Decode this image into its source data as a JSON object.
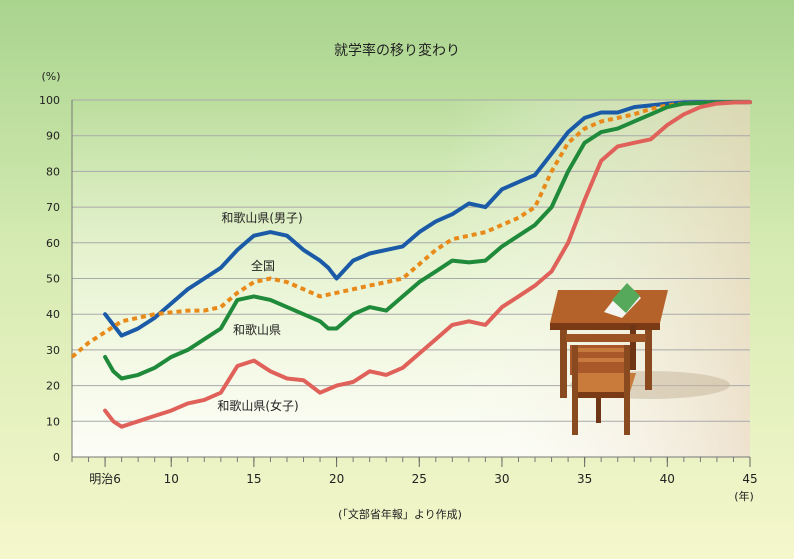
{
  "colors": {
    "background_top": "#a9d48e",
    "background_bottom": "#f5f7cc",
    "male": "#1a5aa6",
    "national": "#e88a1a",
    "total": "#1f8a3a",
    "female": "#e0605a"
  },
  "chart_data": {
    "type": "line",
    "title": "就学率の移り変わり",
    "y_unit": "(%)",
    "x_unit": "(年)",
    "source": "(「文部省年報」より作成)",
    "ylim": [
      0,
      100
    ],
    "xlim": [
      4,
      45
    ],
    "y_ticks": [
      "0",
      "10",
      "20",
      "30",
      "40",
      "50",
      "60",
      "70",
      "80",
      "90",
      "100"
    ],
    "x_ticks": [
      {
        "x": 6,
        "label": "明治6"
      },
      {
        "x": 10,
        "label": "10"
      },
      {
        "x": 15,
        "label": "15"
      },
      {
        "x": 20,
        "label": "20"
      },
      {
        "x": 25,
        "label": "25"
      },
      {
        "x": 30,
        "label": "30"
      },
      {
        "x": 35,
        "label": "35"
      },
      {
        "x": 40,
        "label": "40"
      },
      {
        "x": 45,
        "label": "45"
      }
    ],
    "grid": true,
    "series": [
      {
        "name": "和歌山県(男子)",
        "color": "#1a5aa6",
        "dashed": false,
        "x": [
          6,
          7,
          8,
          9,
          10,
          11,
          12,
          13,
          14,
          14.5,
          15,
          16,
          17,
          18,
          19,
          19.5,
          20,
          21,
          22,
          23,
          24,
          25,
          26,
          27,
          28,
          29,
          30,
          31,
          32,
          33,
          34,
          35,
          36,
          37,
          38,
          39,
          40,
          41,
          42,
          43,
          44,
          45
        ],
        "y": [
          40,
          34,
          36,
          39,
          43,
          47,
          50,
          53,
          58,
          60,
          62,
          63,
          62,
          58,
          55,
          53,
          50,
          55,
          57,
          58,
          59,
          63,
          66,
          68,
          71,
          70,
          75,
          77,
          79,
          85,
          91,
          95,
          96.5,
          96.5,
          98,
          98.5,
          99,
          99.3,
          99.4,
          99.4,
          99.4,
          99.4
        ]
      },
      {
        "name": "全国",
        "color": "#e88a1a",
        "dashed": true,
        "x": [
          4,
          5,
          6,
          7,
          8,
          9,
          10,
          11,
          12,
          13,
          14,
          15,
          16,
          17,
          18,
          19,
          20,
          21,
          22,
          23,
          24,
          25,
          26,
          27,
          28,
          29,
          30,
          31,
          32,
          33,
          34,
          35,
          36,
          37,
          38,
          39,
          40,
          41,
          42,
          43,
          44,
          45
        ],
        "y": [
          28,
          32,
          35,
          38,
          39,
          40,
          40.5,
          41,
          41,
          42,
          46,
          49,
          50,
          49,
          47,
          45,
          46,
          47,
          48,
          49,
          50,
          54,
          58,
          61,
          62,
          63,
          65,
          67,
          70,
          80,
          88,
          92,
          94,
          95,
          96,
          97.5,
          98.5,
          99,
          99.2,
          99.3,
          99.4,
          99.4
        ]
      },
      {
        "name": "和歌山県",
        "color": "#1f8a3a",
        "dashed": false,
        "x": [
          6,
          6.5,
          7,
          8,
          9,
          10,
          11,
          12,
          13,
          14,
          15,
          16,
          17,
          18,
          19,
          19.5,
          20,
          21,
          22,
          23,
          24,
          25,
          26,
          27,
          28,
          29,
          30,
          31,
          32,
          33,
          34,
          35,
          36,
          37,
          38,
          39,
          40,
          41,
          42,
          43,
          44,
          45
        ],
        "y": [
          28,
          24,
          22,
          23,
          25,
          28,
          30,
          33,
          36,
          44,
          45,
          44,
          42,
          40,
          38,
          36,
          36,
          40,
          42,
          41,
          45,
          49,
          52,
          55,
          54.5,
          55,
          59,
          62,
          65,
          70,
          80,
          88,
          91,
          92,
          94,
          96,
          98,
          99,
          99.2,
          99.3,
          99.4,
          99.4
        ]
      },
      {
        "name": "和歌山県(女子)",
        "color": "#e0605a",
        "dashed": false,
        "x": [
          6,
          6.5,
          7,
          8,
          9,
          10,
          11,
          12,
          13,
          14,
          15,
          16,
          17,
          18,
          19,
          20,
          21,
          22,
          23,
          24,
          25,
          26,
          27,
          28,
          29,
          30,
          31,
          32,
          33,
          34,
          35,
          36,
          37,
          38,
          39,
          40,
          41,
          42,
          43,
          44,
          45
        ],
        "y": [
          13,
          10,
          8.5,
          10,
          11.5,
          13,
          15,
          16,
          18,
          25.5,
          27,
          24,
          22,
          21.5,
          18,
          20,
          21,
          24,
          23,
          25,
          29,
          33,
          37,
          38,
          37,
          42,
          45,
          48,
          52,
          60,
          72,
          83,
          87,
          88,
          89,
          93,
          96,
          98,
          99,
          99.3,
          99.4
        ]
      }
    ],
    "annotations": [
      {
        "text": "和歌山県(男子)",
        "series": 0
      },
      {
        "text": "全国",
        "series": 1
      },
      {
        "text": "和歌山県",
        "series": 2
      },
      {
        "text": "和歌山県(女子)",
        "series": 3
      }
    ]
  }
}
